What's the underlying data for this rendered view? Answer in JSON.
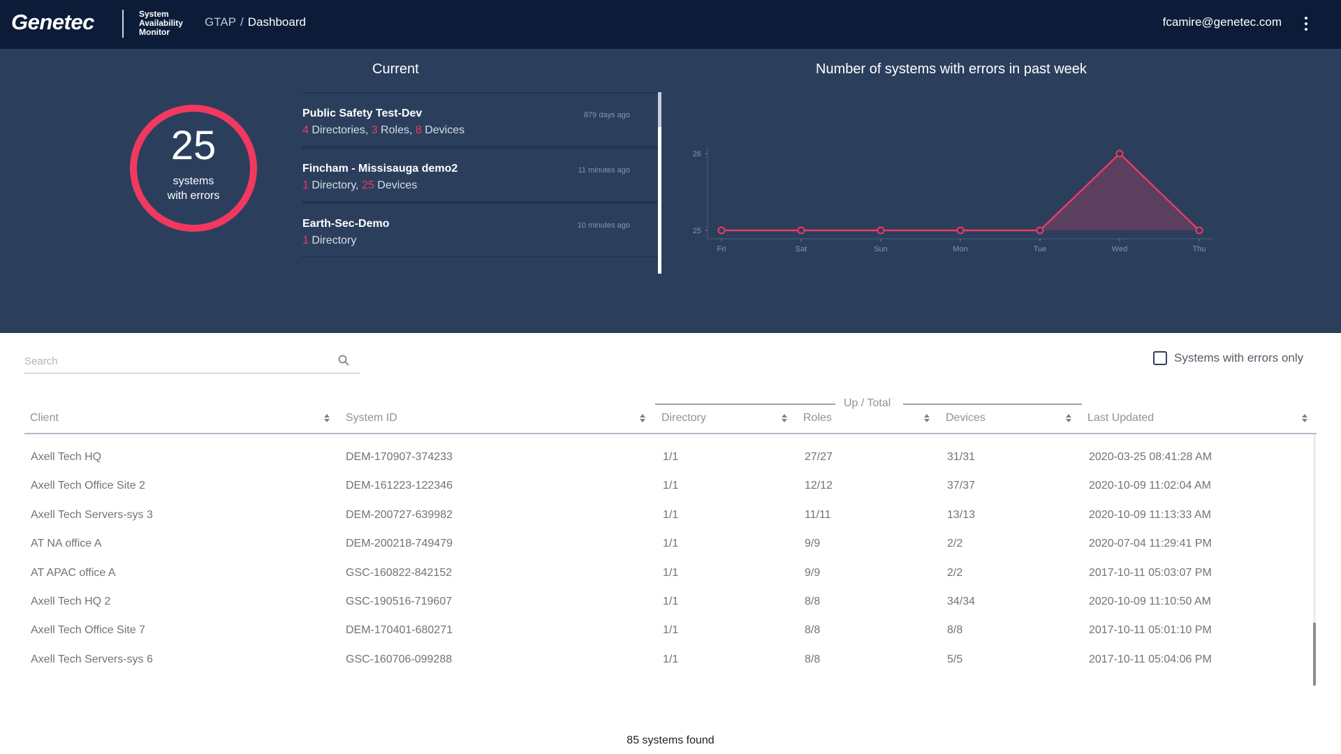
{
  "header": {
    "logo": "Genetec",
    "app_name_lines": [
      "System",
      "Availability",
      "Monitor"
    ],
    "breadcrumb_root": "GTAP",
    "breadcrumb_sep": "/",
    "breadcrumb_current": "Dashboard",
    "user_email": "fcamire@genetec.com",
    "menu_icon": "kebab-menu-icon"
  },
  "current": {
    "title": "Current",
    "errors_count": "25",
    "errors_label_1": "systems",
    "errors_label_2": "with errors",
    "accent_color": "#f2385f",
    "systems": [
      {
        "name": "Public Safety Test-Dev",
        "time": "879 days ago",
        "parts": [
          [
            "4",
            " Directories, "
          ],
          [
            "3",
            " Roles, "
          ],
          [
            "8",
            " Devices"
          ]
        ]
      },
      {
        "name": "Fincham - Missisauga demo2",
        "time": "11 minutes ago",
        "parts": [
          [
            "1",
            " Directory, "
          ],
          [
            "25",
            " Devices"
          ]
        ]
      },
      {
        "name": "Earth-Sec-Demo",
        "time": "10 minutes ago",
        "parts": [
          [
            "1",
            " Directory"
          ]
        ]
      }
    ]
  },
  "chart_data": {
    "type": "line",
    "title": "Number of systems with errors in past week",
    "categories": [
      "Fri",
      "Sat",
      "Sun",
      "Mon",
      "Tue",
      "Wed",
      "Thu"
    ],
    "values": [
      25,
      25,
      25,
      25,
      25,
      26,
      25
    ],
    "yticks": [
      25,
      26
    ],
    "ylim": [
      25,
      26
    ],
    "line_color": "#f2385f",
    "fill_color": "#5a3f5e",
    "grid": false
  },
  "table": {
    "search_placeholder": "Search",
    "filter_label": "Systems with errors only",
    "group_label": "Up / Total",
    "columns": [
      "Client",
      "System ID",
      "Directory",
      "Roles",
      "Devices",
      "Last Updated"
    ],
    "rows": [
      [
        "Axell Tech HQ",
        "DEM-170907-374233",
        "1/1",
        "27/27",
        "31/31",
        "2020-03-25 08:41:28 AM"
      ],
      [
        "Axell Tech Office Site 2",
        "DEM-161223-122346",
        "1/1",
        "12/12",
        "37/37",
        "2020-10-09 11:02:04 AM"
      ],
      [
        "Axell Tech Servers-sys 3",
        "DEM-200727-639982",
        "1/1",
        "11/11",
        "13/13",
        "2020-10-09 11:13:33 AM"
      ],
      [
        "AT NA office A",
        "DEM-200218-749479",
        "1/1",
        "9/9",
        "2/2",
        "2020-07-04 11:29:41 PM"
      ],
      [
        "AT APAC office A",
        "GSC-160822-842152",
        "1/1",
        "9/9",
        "2/2",
        "2017-10-11 05:03:07 PM"
      ],
      [
        "Axell Tech HQ 2",
        "GSC-190516-719607",
        "1/1",
        "8/8",
        "34/34",
        "2020-10-09 11:10:50 AM"
      ],
      [
        "Axell Tech Office Site 7",
        "DEM-170401-680271",
        "1/1",
        "8/8",
        "8/8",
        "2017-10-11 05:01:10 PM"
      ],
      [
        "Axell Tech Servers-sys 6",
        "GSC-160706-099288",
        "1/1",
        "8/8",
        "5/5",
        "2017-10-11 05:04:06 PM"
      ]
    ],
    "found_count": "85",
    "found_label": "systems found"
  }
}
